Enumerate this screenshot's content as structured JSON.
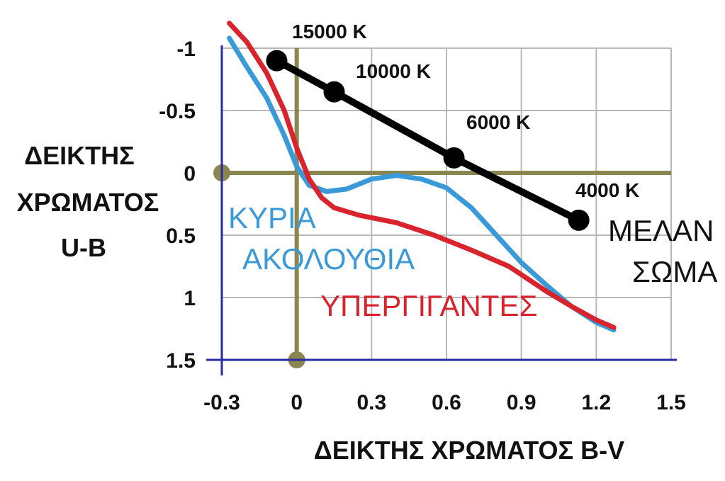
{
  "chart_data": {
    "type": "line",
    "xlabel": "ΔΕΙΚΤΗΣ ΧΡΩΜΑΤΟΣ B-V",
    "ylabel_lines": [
      "ΔΕΙΚΤΗΣ",
      "ΧΡΩΜΑΤΟΣ",
      "U-B"
    ],
    "xlim": [
      -0.3,
      1.5
    ],
    "ylim": [
      -1,
      1.5
    ],
    "y_inverted": true,
    "x_ticks": [
      "-0.3",
      "0",
      "0.3",
      "0.6",
      "0.9",
      "1.2",
      "1.5"
    ],
    "x_tick_values": [
      -0.3,
      0,
      0.3,
      0.6,
      0.9,
      1.2,
      1.5
    ],
    "y_ticks": [
      "-1",
      "-0.5",
      "0",
      "0.5",
      "1",
      "1.5"
    ],
    "y_tick_values": [
      -1,
      -0.5,
      0,
      0.5,
      1,
      1.5
    ],
    "grid": true,
    "series": [
      {
        "name": "ΚΥΡΙΑ ΑΚΟΛΟΥΘΙΑ",
        "color": "#3a9ad9",
        "x": [
          -0.27,
          -0.2,
          -0.12,
          -0.05,
          0.0,
          0.05,
          0.12,
          0.2,
          0.3,
          0.4,
          0.5,
          0.6,
          0.7,
          0.8,
          0.9,
          1.0,
          1.1,
          1.2,
          1.27
        ],
        "y": [
          -1.08,
          -0.85,
          -0.6,
          -0.3,
          -0.05,
          0.1,
          0.15,
          0.13,
          0.05,
          0.02,
          0.05,
          0.12,
          0.28,
          0.5,
          0.72,
          0.9,
          1.07,
          1.2,
          1.26
        ]
      },
      {
        "name": "ΥΠΕΡΓΙΓΑΝΤΕΣ",
        "color": "#d9232d",
        "x": [
          -0.27,
          -0.2,
          -0.12,
          -0.05,
          0.0,
          0.05,
          0.1,
          0.15,
          0.25,
          0.4,
          0.55,
          0.7,
          0.85,
          1.0,
          1.1,
          1.2,
          1.27
        ],
        "y": [
          -1.2,
          -1.05,
          -0.8,
          -0.5,
          -0.2,
          0.05,
          0.2,
          0.28,
          0.34,
          0.4,
          0.5,
          0.62,
          0.75,
          0.95,
          1.07,
          1.18,
          1.24
        ]
      },
      {
        "name": "ΜΕΛΑΝ ΣΩΜΑ",
        "color": "#000000",
        "x": [
          -0.08,
          0.15,
          0.63,
          1.13
        ],
        "y": [
          -0.9,
          -0.65,
          -0.12,
          0.38
        ],
        "point_labels": [
          "15000 K",
          "10000 K",
          "6000 K",
          "4000 K"
        ]
      }
    ],
    "series_labels": {
      "main_sequence": [
        "ΚΥΡΙΑ",
        "ΑΚΟΛΟΥΘΙΑ"
      ],
      "supergiants": [
        "ΥΠΕΡΓΙΓΑΝΤΕΣ"
      ],
      "black_body": [
        "ΜΕΛΑΝ",
        "ΣΩΜΑ"
      ]
    },
    "reference_lines": {
      "x": 0,
      "y": 0,
      "color": "#8b8550"
    },
    "colors": {
      "axis": "#2a2aa8",
      "grid": "#b8b8b8"
    }
  }
}
